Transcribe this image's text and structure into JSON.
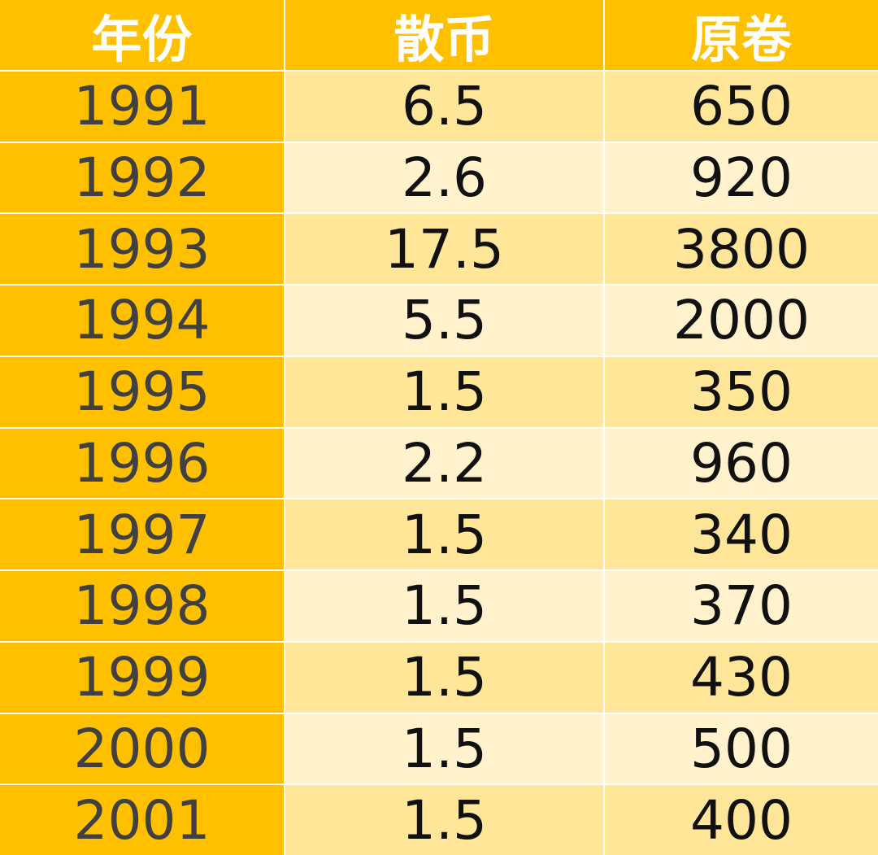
{
  "table": {
    "header": [
      "年份",
      "散币",
      "原卷"
    ],
    "rows": [
      [
        "1991",
        "6.5",
        "650"
      ],
      [
        "1992",
        "2.6",
        "920"
      ],
      [
        "1993",
        "17.5",
        "3800"
      ],
      [
        "1994",
        "5.5",
        "2000"
      ],
      [
        "1995",
        "1.5",
        "350"
      ],
      [
        "1996",
        "2.2",
        "960"
      ],
      [
        "1997",
        "1.5",
        "340"
      ],
      [
        "1998",
        "1.5",
        "370"
      ],
      [
        "1999",
        "1.5",
        "430"
      ],
      [
        "2000",
        "1.5",
        "500"
      ],
      [
        "2001",
        "1.5",
        "400"
      ]
    ]
  }
}
